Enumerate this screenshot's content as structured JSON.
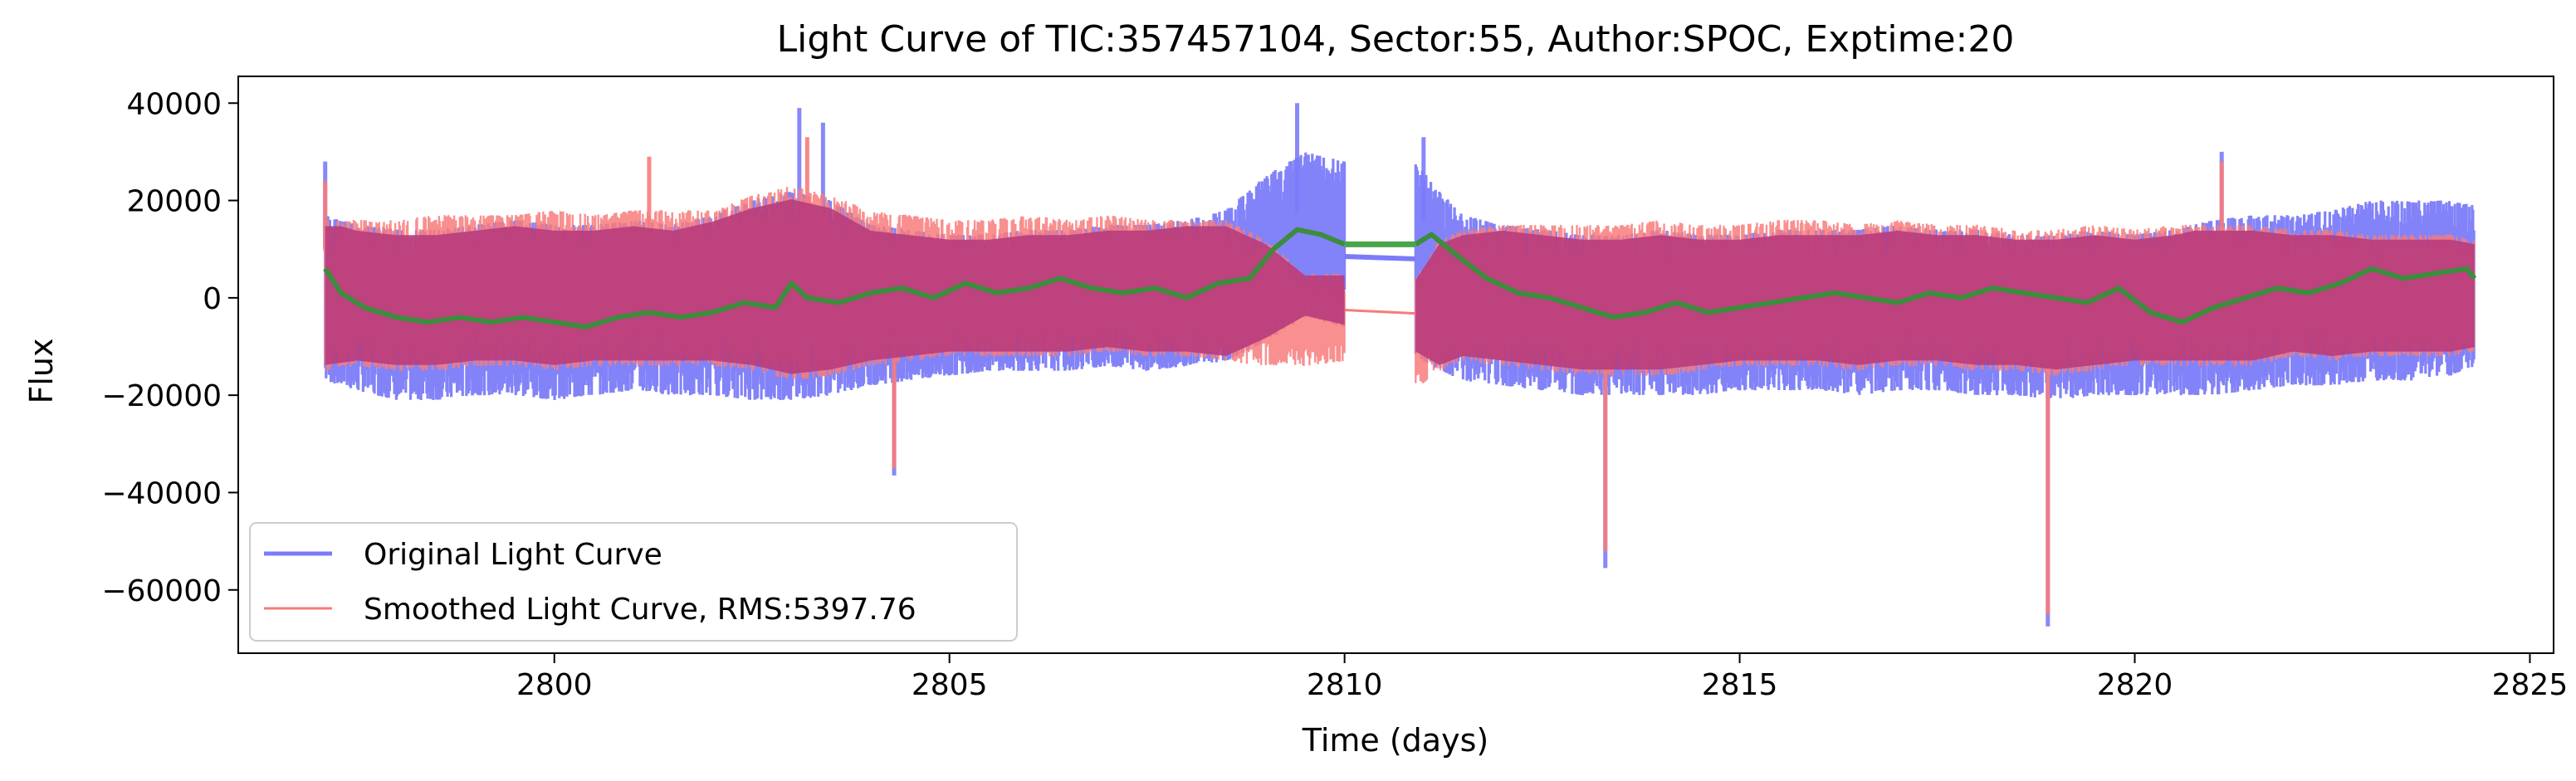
{
  "chart_data": {
    "type": "line",
    "title": "Light Curve of TIC:357457104, Sector:55, Author:SPOC, Exptime:20",
    "xlabel": "Time (days)",
    "ylabel": "Flux",
    "xlim": [
      2796.0,
      2825.3
    ],
    "ylim": [
      -73000,
      45500
    ],
    "xticks": [
      2800,
      2805,
      2810,
      2815,
      2820,
      2825
    ],
    "xtick_labels": [
      "2800",
      "2805",
      "2810",
      "2815",
      "2820",
      "2825"
    ],
    "yticks": [
      40000,
      20000,
      0,
      -20000,
      -40000,
      -60000
    ],
    "ytick_labels": [
      "40000",
      "20000",
      "0",
      "−20000",
      "−40000",
      "−60000"
    ],
    "grid": false,
    "legend_position": "lower-left",
    "series": [
      {
        "name": "Original Light Curve",
        "color": "#7b7bf9",
        "style": "band",
        "x": [
          2797.1,
          2797.5,
          2798.0,
          2798.5,
          2799.0,
          2799.5,
          2800.0,
          2800.5,
          2801.0,
          2801.5,
          2802.0,
          2802.5,
          2803.0,
          2803.5,
          2804.0,
          2804.5,
          2805.0,
          2805.5,
          2806.0,
          2806.5,
          2807.0,
          2807.5,
          2808.0,
          2808.5,
          2809.0,
          2809.5,
          2810.0,
          2810.9,
          2811.2,
          2811.5,
          2812.0,
          2812.5,
          2813.0,
          2813.5,
          2814.0,
          2814.5,
          2815.0,
          2815.5,
          2816.0,
          2816.5,
          2817.0,
          2817.5,
          2818.0,
          2818.5,
          2819.0,
          2819.5,
          2820.0,
          2820.5,
          2821.0,
          2821.5,
          2822.0,
          2822.5,
          2823.0,
          2823.5,
          2824.0,
          2824.3
        ],
        "upper": [
          17000,
          15000,
          14000,
          14000,
          15000,
          16000,
          15000,
          15000,
          16000,
          15000,
          17000,
          20000,
          22000,
          20000,
          15000,
          14000,
          13000,
          13000,
          14000,
          14000,
          15000,
          15000,
          16000,
          18000,
          25000,
          30000,
          28000,
          28000,
          22000,
          17000,
          15000,
          14000,
          13000,
          13000,
          14000,
          13000,
          13000,
          14000,
          14000,
          14000,
          15000,
          14000,
          14000,
          13000,
          13000,
          14000,
          13000,
          14000,
          16000,
          17000,
          17000,
          18000,
          20000,
          20000,
          20000,
          19000
        ],
        "lower": [
          -17000,
          -19000,
          -21000,
          -21000,
          -20000,
          -20000,
          -21000,
          -20000,
          -19000,
          -20000,
          -20000,
          -21000,
          -21000,
          -20000,
          -18000,
          -17000,
          -16000,
          -15000,
          -15000,
          -15000,
          -14000,
          -15000,
          -14000,
          -13000,
          -9000,
          -4000,
          -6000,
          -12000,
          -15000,
          -17000,
          -18000,
          -19000,
          -20000,
          -20000,
          -20000,
          -20000,
          -19000,
          -19000,
          -19000,
          -20000,
          -19000,
          -19000,
          -20000,
          -20000,
          -21000,
          -20000,
          -20000,
          -20000,
          -20000,
          -19000,
          -18000,
          -18000,
          -17000,
          -17000,
          -16000,
          -14000
        ],
        "spikes": [
          {
            "x": 2797.1,
            "y": 28000
          },
          {
            "x": 2803.1,
            "y": 39000
          },
          {
            "x": 2803.4,
            "y": 36000
          },
          {
            "x": 2804.3,
            "y": -36500
          },
          {
            "x": 2809.4,
            "y": 40000
          },
          {
            "x": 2811.0,
            "y": 33000
          },
          {
            "x": 2813.3,
            "y": -55500
          },
          {
            "x": 2818.9,
            "y": -67500
          },
          {
            "x": 2821.1,
            "y": 30000
          }
        ]
      },
      {
        "name": "Smoothed Light Curve, RMS:5397.76",
        "color": "#f87b7b",
        "style": "band",
        "x": [
          2797.1,
          2797.5,
          2798.0,
          2798.5,
          2799.0,
          2799.5,
          2800.0,
          2800.5,
          2801.0,
          2801.5,
          2802.0,
          2802.5,
          2803.0,
          2803.5,
          2804.0,
          2804.5,
          2805.0,
          2805.5,
          2806.0,
          2806.5,
          2807.0,
          2807.5,
          2808.0,
          2808.5,
          2809.0,
          2809.5,
          2810.0,
          2810.9,
          2811.2,
          2811.5,
          2812.0,
          2812.5,
          2813.0,
          2813.5,
          2814.0,
          2814.5,
          2815.0,
          2815.5,
          2816.0,
          2816.5,
          2817.0,
          2817.5,
          2818.0,
          2818.5,
          2819.0,
          2819.5,
          2820.0,
          2820.5,
          2821.0,
          2821.5,
          2822.0,
          2822.5,
          2823.0,
          2823.5,
          2824.0,
          2824.3
        ],
        "upper": [
          16000,
          16000,
          16000,
          17000,
          17000,
          17000,
          18000,
          17000,
          18000,
          18000,
          18000,
          21000,
          23000,
          21000,
          18000,
          17000,
          16000,
          16000,
          17000,
          16000,
          17000,
          16000,
          16000,
          16000,
          12000,
          5000,
          5000,
          4000,
          12000,
          14000,
          15000,
          15000,
          15000,
          15000,
          16000,
          15000,
          15000,
          16000,
          16000,
          15000,
          16000,
          15000,
          15000,
          14000,
          14000,
          15000,
          14000,
          15000,
          15000,
          15000,
          14000,
          14000,
          13000,
          13000,
          13000,
          12000
        ],
        "lower": [
          -15000,
          -14000,
          -15000,
          -15000,
          -14000,
          -14000,
          -15000,
          -14000,
          -14000,
          -14000,
          -14000,
          -15000,
          -17000,
          -16000,
          -14000,
          -13000,
          -12000,
          -12000,
          -12000,
          -12000,
          -11000,
          -12000,
          -12000,
          -13000,
          -14000,
          -14000,
          -13000,
          -19000,
          -15000,
          -13000,
          -14000,
          -15000,
          -16000,
          -16000,
          -16000,
          -15000,
          -14000,
          -14000,
          -14000,
          -15000,
          -14000,
          -14000,
          -15000,
          -15000,
          -16000,
          -15000,
          -14000,
          -14000,
          -14000,
          -14000,
          -12000,
          -13000,
          -12000,
          -12000,
          -12000,
          -11000
        ],
        "spikes": [
          {
            "x": 2797.1,
            "y": 24000
          },
          {
            "x": 2801.2,
            "y": 29000
          },
          {
            "x": 2803.2,
            "y": 33000
          },
          {
            "x": 2804.3,
            "y": -35000
          },
          {
            "x": 2813.3,
            "y": -52000
          },
          {
            "x": 2818.9,
            "y": -65000
          },
          {
            "x": 2821.1,
            "y": 28000
          }
        ],
        "gap_line": {
          "x": [
            2810.0,
            2810.9
          ],
          "y": [
            -2500,
            -3200
          ]
        }
      },
      {
        "color": "#3c8d3c",
        "style": "line",
        "x": [
          2797.1,
          2797.3,
          2797.6,
          2798.0,
          2798.4,
          2798.8,
          2799.2,
          2799.6,
          2800.0,
          2800.4,
          2800.8,
          2801.2,
          2801.6,
          2802.0,
          2802.4,
          2802.8,
          2803.0,
          2803.2,
          2803.6,
          2804.0,
          2804.4,
          2804.8,
          2805.2,
          2805.6,
          2806.0,
          2806.4,
          2806.8,
          2807.2,
          2807.6,
          2808.0,
          2808.4,
          2808.8,
          2809.1,
          2809.4,
          2809.7,
          2810.0,
          2810.9,
          2811.1,
          2811.4,
          2811.8,
          2812.2,
          2812.6,
          2813.0,
          2813.4,
          2813.8,
          2814.2,
          2814.6,
          2815.0,
          2815.4,
          2815.8,
          2816.2,
          2816.6,
          2817.0,
          2817.4,
          2817.8,
          2818.2,
          2818.6,
          2819.0,
          2819.4,
          2819.8,
          2820.2,
          2820.6,
          2821.0,
          2821.4,
          2821.8,
          2822.2,
          2822.6,
          2823.0,
          2823.4,
          2823.8,
          2824.2,
          2824.3
        ],
        "y": [
          6000,
          1000,
          -2000,
          -4000,
          -5000,
          -4000,
          -5000,
          -4000,
          -5000,
          -6000,
          -4000,
          -3000,
          -4000,
          -3000,
          -1000,
          -2000,
          3000,
          0,
          -1000,
          1000,
          2000,
          0,
          3000,
          1000,
          2000,
          4000,
          2000,
          1000,
          2000,
          0,
          3000,
          4000,
          10000,
          14000,
          13000,
          11000,
          11000,
          13000,
          9000,
          4000,
          1000,
          0,
          -2000,
          -4000,
          -3000,
          -1000,
          -3000,
          -2000,
          -1000,
          0,
          1000,
          0,
          -1000,
          1000,
          0,
          2000,
          1000,
          0,
          -1000,
          2000,
          -3000,
          -5000,
          -2000,
          0,
          2000,
          1000,
          3000,
          6000,
          4000,
          5000,
          6000,
          4000
        ],
        "gap_line": {
          "x": [
            2810.0,
            2810.9
          ],
          "y": [
            11000,
            11000
          ]
        }
      }
    ],
    "blue_gap_line": {
      "x": [
        2810.0,
        2810.9
      ],
      "y": [
        8500,
        8000
      ]
    }
  }
}
